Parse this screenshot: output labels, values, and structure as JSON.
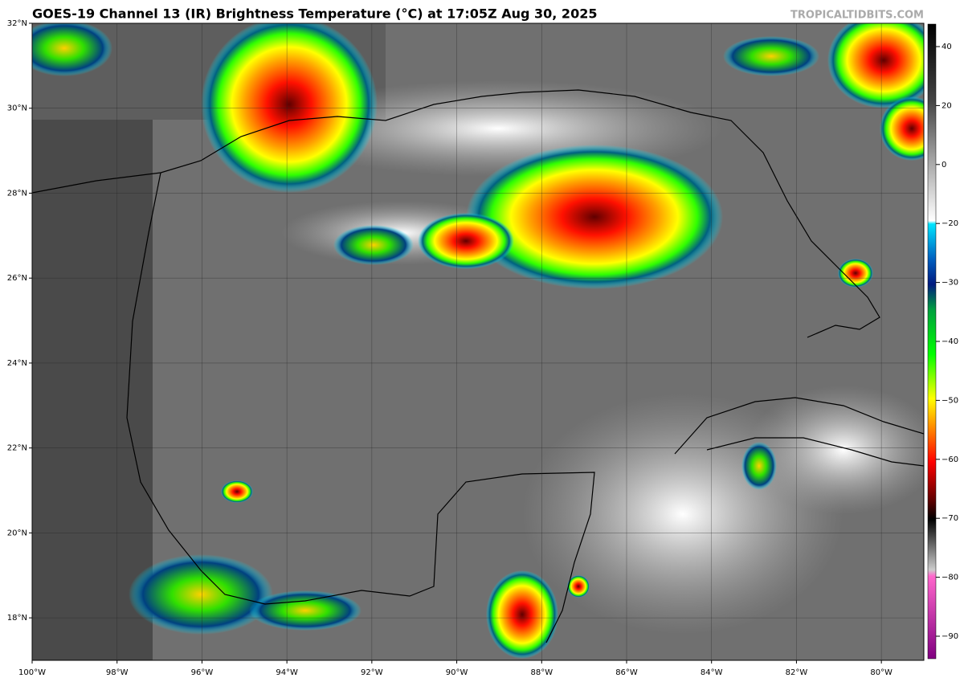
{
  "title": "GOES-19 Channel 13 (IR) Brightness Temperature (°C) at 17:05Z Aug 30, 2025",
  "watermark": "TROPICALTIDBITS.COM",
  "map": {
    "xlim": [
      -100,
      -79
    ],
    "ylim": [
      17,
      32
    ],
    "yticks": [
      {
        "value": 18,
        "label": "18°N"
      },
      {
        "value": 20,
        "label": "20°N"
      },
      {
        "value": 22,
        "label": "22°N"
      },
      {
        "value": 24,
        "label": "24°N"
      },
      {
        "value": 26,
        "label": "26°N"
      },
      {
        "value": 28,
        "label": "28°N"
      },
      {
        "value": 30,
        "label": "30°N"
      },
      {
        "value": 32,
        "label": "32°N"
      }
    ],
    "xticks": [
      {
        "value": -100,
        "label": "100°W"
      },
      {
        "value": -98,
        "label": "98°W"
      },
      {
        "value": -96,
        "label": "96°W"
      },
      {
        "value": -94,
        "label": "94°W"
      },
      {
        "value": -92,
        "label": "92°W"
      },
      {
        "value": -90,
        "label": "90°W"
      },
      {
        "value": -88,
        "label": "88°W"
      },
      {
        "value": -86,
        "label": "86°W"
      },
      {
        "value": -84,
        "label": "84°W"
      },
      {
        "value": -82,
        "label": "82°W"
      },
      {
        "value": -80,
        "label": "80°W"
      }
    ],
    "grid": true
  },
  "colorbar": {
    "ticks": [
      40,
      20,
      0,
      {
        "value": -20,
        "label": "−20"
      },
      {
        "value": -30,
        "label": "−30"
      },
      {
        "value": -40,
        "label": "−40"
      },
      {
        "value": -50,
        "label": "−50"
      },
      {
        "value": -60,
        "label": "−60"
      },
      {
        "value": -70,
        "label": "−70"
      },
      {
        "value": -80,
        "label": "−80"
      },
      {
        "value": -90,
        "label": "−90"
      }
    ]
  }
}
